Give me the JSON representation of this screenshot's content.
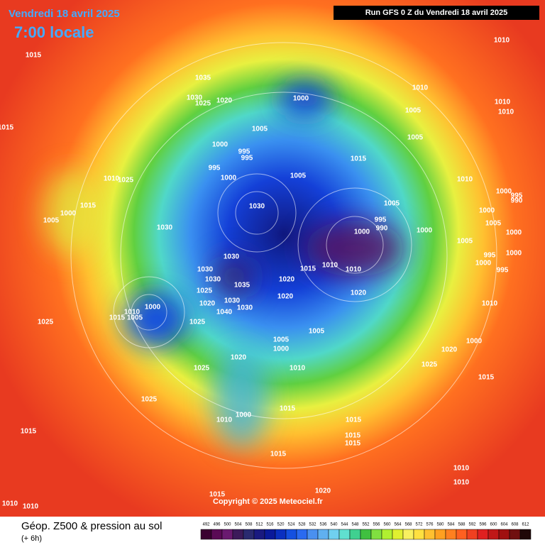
{
  "header": {
    "title": "Vendredi 18 avril 2025",
    "time": "7:00 locale",
    "run": "Run GFS 0 Z du Vendredi 18 avril 2025"
  },
  "footer": {
    "legend_title": "Géop. Z500 & pression au sol",
    "step": "(+ 6h)",
    "copyright": "Copyright © 2025 Meteociel.fr"
  },
  "scale": {
    "levels": [
      492,
      496,
      500,
      504,
      508,
      512,
      516,
      520,
      524,
      528,
      532,
      536,
      540,
      544,
      548,
      552,
      556,
      560,
      564,
      568,
      572,
      576,
      580,
      584,
      588,
      592,
      596,
      600,
      604,
      608,
      612
    ],
    "colors": [
      "#3a0030",
      "#5a0a55",
      "#6a1a70",
      "#3c1a5a",
      "#2a2a70",
      "#1a1a80",
      "#0a1a9a",
      "#0a30c0",
      "#1450e0",
      "#2a6af0",
      "#4a90f0",
      "#60b0f0",
      "#70d0f0",
      "#60e0d0",
      "#40d090",
      "#40c040",
      "#80e040",
      "#b0f030",
      "#e0f030",
      "#f8f060",
      "#ffe040",
      "#ffc030",
      "#ffa020",
      "#ff8020",
      "#ff6020",
      "#f04020",
      "#e02020",
      "#c01818",
      "#a01010",
      "#701010",
      "#200808"
    ]
  },
  "isobar_labels": [
    "1015",
    "1035",
    "1030",
    "1025",
    "1020",
    "1000",
    "1005",
    "1000",
    "995",
    "995",
    "995",
    "1000",
    "1005",
    "1015",
    "1005",
    "1005",
    "1010",
    "1010",
    "1010",
    "1010",
    "1010",
    "1030",
    "1030",
    "995",
    "990",
    "1000",
    "1000",
    "1005",
    "1030",
    "1030",
    "1030",
    "1035",
    "1020",
    "1015",
    "1010",
    "1010",
    "1020",
    "1020",
    "1025",
    "1020",
    "1040",
    "1030",
    "1030",
    "1000",
    "1010",
    "1015",
    "1005",
    "1025",
    "1025",
    "1005",
    "1000",
    "1005",
    "1020",
    "1010",
    "1025",
    "1025",
    "1015",
    "1015",
    "1015",
    "1015",
    "1015",
    "1015",
    "1020",
    "1025",
    "1015",
    "1000",
    "1010",
    "1005",
    "995",
    "1000",
    "995",
    "1000",
    "1000",
    "1005",
    "1000",
    "995",
    "990",
    "1000",
    "1010",
    "1010",
    "1020",
    "1015",
    "1010",
    "1010",
    "1015",
    "1010",
    "1025",
    "1015",
    "1000",
    "1005",
    "1010",
    "1000"
  ]
}
